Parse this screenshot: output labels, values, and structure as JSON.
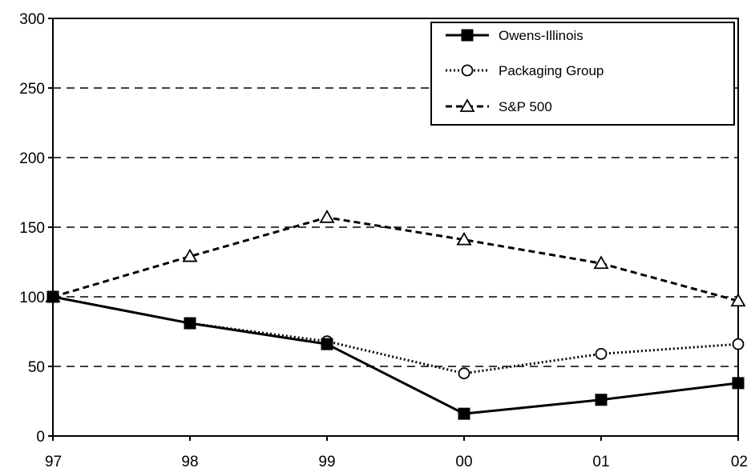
{
  "chart_data": {
    "type": "line",
    "title": "",
    "xlabel": "",
    "ylabel": "",
    "categories": [
      "97",
      "98",
      "99",
      "00",
      "01",
      "02"
    ],
    "yticks": [
      0,
      50,
      100,
      150,
      200,
      250,
      300
    ],
    "ylim": [
      0,
      300
    ],
    "grid": "horizontal-dashed",
    "legend_position": "top-right",
    "series": [
      {
        "name": "Owens-Illinois",
        "values": [
          100,
          81,
          66,
          16,
          26,
          38
        ],
        "line_style": "solid",
        "marker": "filled-square",
        "color": "#000000"
      },
      {
        "name": "Packaging Group",
        "values": [
          100,
          81,
          68,
          45,
          59,
          66
        ],
        "line_style": "dotted",
        "marker": "open-circle",
        "color": "#000000"
      },
      {
        "name": "S&P 500",
        "values": [
          100,
          129,
          157,
          141,
          124,
          97
        ],
        "line_style": "dashed",
        "marker": "open-triangle",
        "color": "#000000"
      }
    ]
  }
}
